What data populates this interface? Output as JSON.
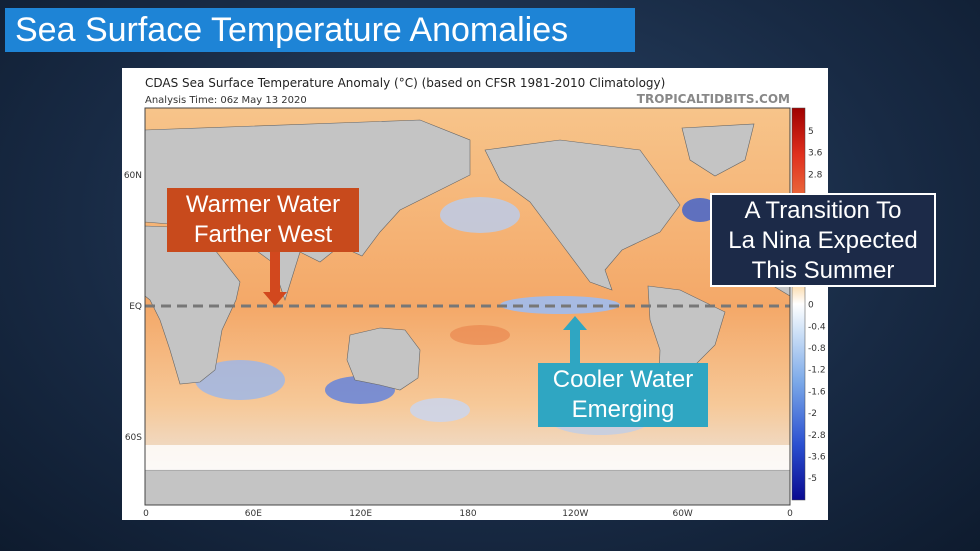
{
  "title": "Sea Surface Temperature Anomalies",
  "map": {
    "header": "CDAS Sea Surface Temperature Anomaly (°C) (based on CFSR 1981-2010 Climatology)",
    "analysis_time": "Analysis Time: 06z May 13 2020",
    "source": "TROPICALTIDBITS.COM",
    "lat_labels": [
      "60N",
      "EQ",
      "60S"
    ],
    "lon_labels": [
      "0",
      "60E",
      "120E",
      "180",
      "120W",
      "60W",
      "0"
    ],
    "colorbar_labels": [
      5,
      3.6,
      2.8,
      0,
      -0.4,
      -0.8,
      -1.2,
      -1.6,
      -2,
      -2.8,
      -3.6,
      -5
    ]
  },
  "annotations": [
    {
      "lines": [
        "Warmer Water",
        "Farther West"
      ]
    },
    {
      "lines": [
        "Cooler Water",
        "Emerging"
      ]
    },
    {
      "lines": [
        "A Transition To",
        "La Nina Expected",
        "This Summer"
      ]
    }
  ]
}
